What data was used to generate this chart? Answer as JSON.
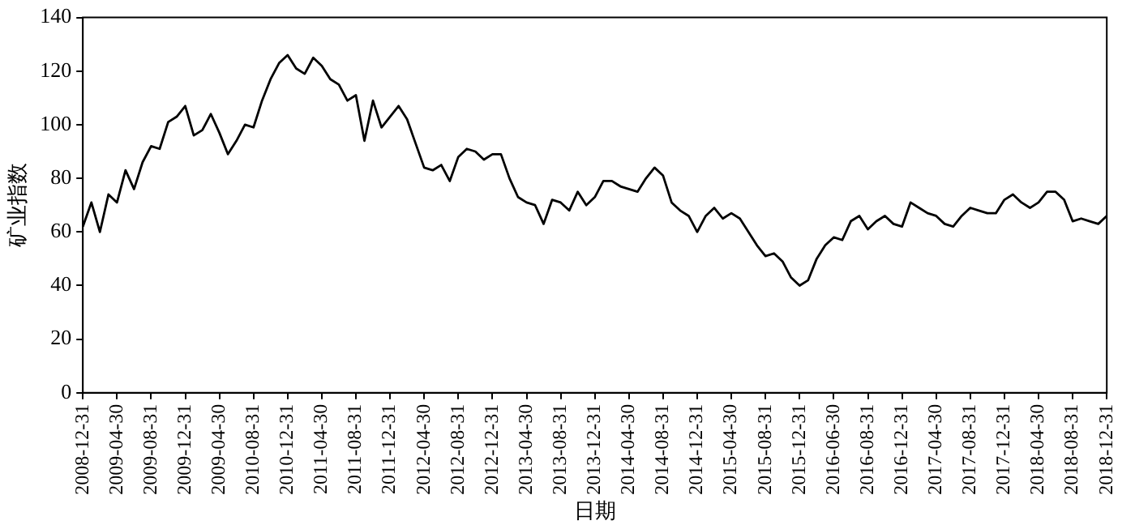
{
  "chart_data": {
    "type": "line",
    "xlabel": "日期",
    "ylabel": "矿业指数",
    "color": "#000000",
    "grid": false,
    "legend": false,
    "marker": "none",
    "line_style": "solid",
    "categories": [
      "2008-12-31",
      null,
      null,
      null,
      "2009-04-30",
      null,
      null,
      null,
      "2009-08-31",
      null,
      null,
      null,
      "2009-12-31",
      null,
      null,
      null,
      "2009-04-30",
      null,
      null,
      null,
      "2010-08-31",
      null,
      null,
      null,
      "2010-12-31",
      null,
      null,
      null,
      "2011-04-30",
      null,
      null,
      null,
      "2011-08-31",
      null,
      null,
      null,
      "2011-12-31",
      null,
      null,
      null,
      "2012-04-30",
      null,
      null,
      null,
      "2012-08-31",
      null,
      null,
      null,
      "2012-12-31",
      null,
      null,
      null,
      "2013-04-30",
      null,
      null,
      null,
      "2013-08-31",
      null,
      null,
      null,
      "2013-12-31",
      null,
      null,
      null,
      "2014-04-30",
      null,
      null,
      null,
      "2014-08-31",
      null,
      null,
      null,
      "2014-12-31",
      null,
      null,
      null,
      "2015-04-30",
      null,
      null,
      null,
      "2015-08-31",
      null,
      null,
      null,
      "2015-12-31",
      null,
      null,
      null,
      "2016-06-30",
      null,
      null,
      null,
      "2016-08-31",
      null,
      null,
      null,
      "2016-12-31",
      null,
      null,
      null,
      "2017-04-30",
      null,
      null,
      null,
      "2017-08-31",
      null,
      null,
      null,
      "2017-12-31",
      null,
      null,
      null,
      "2018-04-30",
      null,
      null,
      null,
      "2018-08-31",
      null,
      null,
      null,
      "2018-12-31"
    ],
    "values": [
      62,
      71,
      60,
      74,
      71,
      83,
      76,
      86,
      92,
      91,
      101,
      103,
      107,
      96,
      98,
      104,
      97,
      89,
      94,
      100,
      99,
      109,
      117,
      123,
      126,
      121,
      119,
      125,
      122,
      117,
      115,
      109,
      111,
      94,
      109,
      99,
      103,
      107,
      102,
      93,
      84,
      83,
      85,
      79,
      88,
      91,
      90,
      87,
      89,
      89,
      80,
      73,
      71,
      70,
      63,
      72,
      71,
      68,
      75,
      70,
      73,
      79,
      79,
      77,
      76,
      75,
      80,
      84,
      81,
      71,
      68,
      66,
      60,
      66,
      69,
      65,
      67,
      65,
      60,
      55,
      51,
      52,
      49,
      43,
      40,
      42,
      50,
      55,
      58,
      57,
      64,
      66,
      61,
      64,
      66,
      63,
      62,
      71,
      69,
      67,
      66,
      63,
      62,
      66,
      69,
      68,
      67,
      67,
      72,
      74,
      71,
      69,
      71,
      75,
      75,
      72,
      64,
      65,
      64,
      63,
      66
    ],
    "ylim": [
      0,
      140
    ],
    "yticks": [
      0,
      20,
      40,
      60,
      80,
      100,
      120,
      140
    ]
  }
}
